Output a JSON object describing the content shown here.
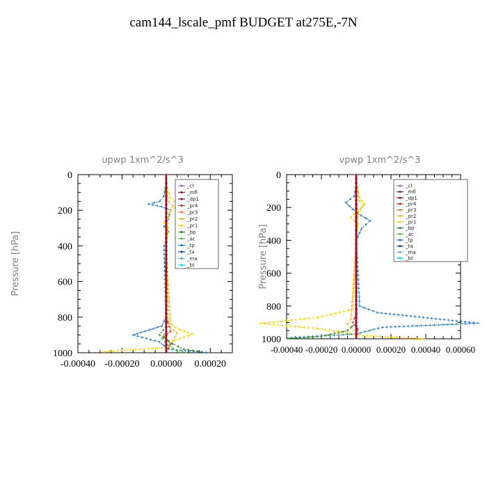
{
  "title": "cam144_lscale_pmf  BUDGET at275E,-7N",
  "legend_labels": [
    "_cl",
    "_mfl",
    "_dp1",
    "_pr4",
    "_pr3",
    "_pr2",
    "_pr1",
    "_bp",
    "_ac",
    "_tp",
    "_ta",
    "_ma",
    "_bt"
  ],
  "series_colors": {
    "_cl": "#8c6fb0",
    "_mfl": "#8b1a4a",
    "_dp1": "#a0142a",
    "_pr4": "#d4362c",
    "_pr3": "#f0804a",
    "_pr2": "#f4b830",
    "_pr1": "#fad400",
    "_bp": "#2a8a2a",
    "_ac": "#58c040",
    "_tp": "#1e78c8",
    "_ta": "#2040b0",
    "_ma": "#6eb0e0",
    "_bt": "#00e0f0"
  },
  "chart_data": [
    {
      "type": "line",
      "title": "upwp   1xm^2/s^3",
      "ylabel": "Pressure  [hPa]",
      "xlabel": "",
      "xlim": [
        -0.0004,
        0.0003
      ],
      "ylim": [
        1000,
        0
      ],
      "xticks": [
        "-0.00040",
        "-0.00020",
        "0.00000",
        "0.00020"
      ],
      "xtick_values": [
        -0.0004,
        -0.0002,
        0.0,
        0.0002
      ],
      "yticks": [
        "0",
        "200",
        "400",
        "600",
        "800",
        "1000"
      ],
      "ytick_values": [
        0,
        200,
        400,
        600,
        800,
        1000
      ],
      "legend": "top-right",
      "series": [
        {
          "name": "_tp",
          "x": [
            0,
            -1e-05,
            -3e-05,
            -8e-05,
            -2e-05,
            2e-05,
            1e-05,
            -1e-05,
            1e-05,
            0.0,
            -1e-05,
            0.0,
            -2e-05,
            -0.00015,
            -3e-05,
            1e-05,
            0.0002
          ],
          "y": [
            50,
            120,
            150,
            165,
            180,
            200,
            250,
            290,
            320,
            360,
            400,
            800,
            850,
            900,
            940,
            980,
            1000
          ]
        },
        {
          "name": "_pr1",
          "x": [
            0,
            2e-05,
            6e-05,
            2e-05,
            1e-05,
            -1e-05,
            1e-05,
            0.0,
            1e-05,
            6e-05,
            0.00012,
            4e-05,
            0.0,
            -0.0003
          ],
          "y": [
            50,
            130,
            170,
            200,
            240,
            270,
            300,
            400,
            830,
            870,
            895,
            930,
            970,
            995
          ]
        },
        {
          "name": "_pr2",
          "x": [
            0,
            1e-05,
            3e-05,
            1e-05,
            0.0,
            2e-05,
            5e-05,
            2e-05,
            0.0
          ],
          "y": [
            50,
            150,
            175,
            220,
            400,
            860,
            890,
            950,
            1000
          ]
        },
        {
          "name": "_pr4",
          "x": [
            0,
            0.0,
            2e-05,
            -1e-05,
            2e-05,
            0.0
          ],
          "y": [
            50,
            800,
            880,
            910,
            950,
            1000
          ]
        },
        {
          "name": "_bp",
          "x": [
            0,
            0.0,
            -3e-05,
            3e-05,
            8e-05,
            0.00018
          ],
          "y": [
            50,
            850,
            900,
            950,
            980,
            1000
          ]
        },
        {
          "name": "_ac",
          "x": [
            0,
            0.0,
            -2e-05,
            1e-05,
            5e-05,
            0.0001
          ],
          "y": [
            50,
            880,
            920,
            960,
            990,
            1000
          ]
        },
        {
          "name": "_mfl",
          "x": [
            0,
            0.0,
            0.0
          ],
          "y": [
            0,
            500,
            1000
          ]
        },
        {
          "name": "_dp1",
          "x": [
            0,
            0.0,
            0.0
          ],
          "y": [
            0,
            500,
            1000
          ]
        }
      ]
    },
    {
      "type": "line",
      "title": "vpwp   1xm^2/s^3",
      "ylabel": "Pressure  [hPa]",
      "xlabel": "",
      "xlim": [
        -0.0004,
        0.0006
      ],
      "ylim": [
        1000,
        0
      ],
      "xticks": [
        "-0.00040",
        "-0.00020",
        "0.00000",
        "0.00020",
        "0.00040",
        "0.00060"
      ],
      "xtick_values": [
        -0.0004,
        -0.0002,
        0.0,
        0.0002,
        0.0004,
        0.0006
      ],
      "yticks": [
        "0",
        "200",
        "400",
        "600",
        "800",
        "1000"
      ],
      "ytick_values": [
        0,
        200,
        400,
        600,
        800,
        1000
      ],
      "legend": "top-right",
      "series": [
        {
          "name": "_tp",
          "x": [
            0,
            -1e-05,
            -6e-05,
            -2e-05,
            3e-05,
            8e-05,
            3e-05,
            0.0,
            2e-05,
            0.00012,
            0.0007,
            0.00015,
            0.0,
            -0.0004
          ],
          "y": [
            50,
            130,
            170,
            210,
            250,
            280,
            330,
            400,
            800,
            840,
            905,
            930,
            970,
            995
          ]
        },
        {
          "name": "_pr1",
          "x": [
            0,
            2e-05,
            5e-05,
            1e-05,
            -3e-05,
            1e-05,
            0.0,
            -2e-05,
            -0.00022,
            -0.00055,
            -0.0002,
            4e-05,
            0.0004
          ],
          "y": [
            50,
            140,
            180,
            220,
            260,
            300,
            400,
            820,
            870,
            905,
            940,
            980,
            1000
          ]
        },
        {
          "name": "_pr2",
          "x": [
            0,
            2e-05,
            4e-05,
            1e-05,
            0.0,
            -3e-05,
            -5e-05,
            -1e-05
          ],
          "y": [
            50,
            160,
            190,
            240,
            400,
            880,
            910,
            960
          ]
        },
        {
          "name": "_bp",
          "x": [
            0,
            0.0,
            -5e-05,
            -0.0002,
            -0.0004
          ],
          "y": [
            50,
            900,
            950,
            985,
            1000
          ]
        },
        {
          "name": "_pr4",
          "x": [
            0,
            0.0,
            -2e-05,
            1e-05,
            0.0
          ],
          "y": [
            50,
            850,
            900,
            940,
            1000
          ]
        },
        {
          "name": "_mfl",
          "x": [
            0,
            0.0,
            0.0
          ],
          "y": [
            0,
            500,
            1000
          ]
        },
        {
          "name": "_dp1",
          "x": [
            0,
            0.0,
            0.0
          ],
          "y": [
            0,
            500,
            1000
          ]
        }
      ]
    }
  ]
}
